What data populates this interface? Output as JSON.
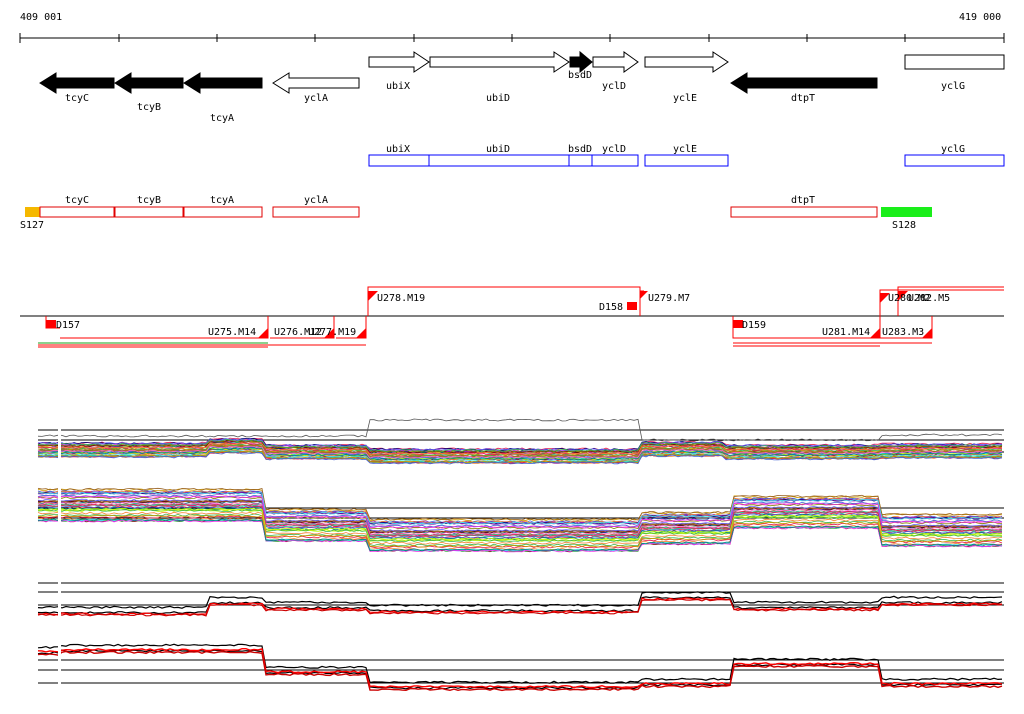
{
  "coords": {
    "start": "409 001",
    "end": "419 000"
  },
  "genes_top": [
    {
      "label": "tcyC",
      "strand": "-",
      "filled": true
    },
    {
      "label": "tcyB",
      "strand": "-",
      "filled": true
    },
    {
      "label": "tcyA",
      "strand": "-",
      "filled": true
    },
    {
      "label": "yclA",
      "strand": "-",
      "filled": false
    },
    {
      "label": "ubiX",
      "strand": "+",
      "filled": false
    },
    {
      "label": "ubiD",
      "strand": "+",
      "filled": false
    },
    {
      "label": "bsdD",
      "strand": "+",
      "filled": true
    },
    {
      "label": "yclD",
      "strand": "+",
      "filled": false
    },
    {
      "label": "yclE",
      "strand": "+",
      "filled": false
    },
    {
      "label": "dtpT",
      "strand": "-",
      "filled": true
    },
    {
      "label": "yclG",
      "strand": "+",
      "filled": false
    }
  ],
  "genes_blue": [
    "ubiX",
    "ubiD",
    "bsdD",
    "yclD",
    "yclE",
    "yclG"
  ],
  "genes_red": [
    "tcyC",
    "tcyB",
    "tcyA",
    "yclA",
    "dtpT"
  ],
  "segments": {
    "s127": "S127",
    "s128": "S128"
  },
  "features": {
    "d157": "D157",
    "u275": "U275.M14",
    "u276": "U276.M12",
    "u277": "U277.M19",
    "u278": "U278.M19",
    "d158": "D158",
    "u279": "U279.M7",
    "d159": "D159",
    "u281": "U281.M14",
    "u280": "U280.M2",
    "u282": "U282.M5",
    "u283": "U283.M3"
  },
  "colors": {
    "orange": "#f5b800",
    "green": "#1aee1a",
    "red": "#ff0000",
    "blue": "#0000ff"
  }
}
